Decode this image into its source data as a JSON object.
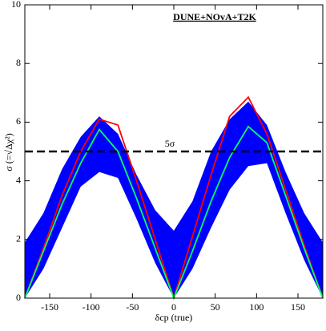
{
  "chart_data": {
    "type": "line",
    "title": "DUNE+NOvA+T2K",
    "x_label": "δcp (true)",
    "y_label": "σ (=√Δχ²)",
    "x": [
      -180,
      -157.5,
      -135,
      -112.5,
      -90,
      -67.5,
      -45,
      -22.5,
      0,
      22.5,
      45,
      67.5,
      90,
      112.5,
      135,
      157.5,
      180
    ],
    "band": {
      "color": "#0000ff",
      "upper": [
        1.9,
        2.9,
        4.4,
        5.5,
        6.2,
        5.6,
        4.2,
        3.0,
        2.3,
        3.3,
        5.0,
        6.1,
        6.7,
        5.9,
        4.3,
        2.9,
        1.9
      ],
      "lower": [
        0,
        1.0,
        2.4,
        3.8,
        4.3,
        4.1,
        2.7,
        1.2,
        0,
        1.0,
        2.4,
        3.7,
        4.5,
        4.6,
        2.9,
        1.3,
        0
      ]
    },
    "series": [
      {
        "color": "#ff0000",
        "values": [
          0,
          1.7,
          3.5,
          5.0,
          6.1,
          5.9,
          4.0,
          2.0,
          0,
          2.1,
          4.2,
          6.2,
          6.85,
          5.6,
          3.7,
          1.8,
          0
        ]
      },
      {
        "color": "#00ff66",
        "values": [
          0,
          1.6,
          3.2,
          4.6,
          5.75,
          5.0,
          3.4,
          1.7,
          0,
          1.6,
          3.3,
          4.8,
          5.85,
          5.3,
          3.5,
          1.7,
          0
        ]
      }
    ],
    "threshold": {
      "value": 5,
      "label": "5σ"
    },
    "xlim": [
      -180,
      180
    ],
    "ylim": [
      0,
      10
    ],
    "xticks": [
      -150,
      -100,
      -50,
      0,
      50,
      100,
      150
    ],
    "yticks": [
      0,
      2,
      4,
      6,
      8,
      10
    ]
  }
}
